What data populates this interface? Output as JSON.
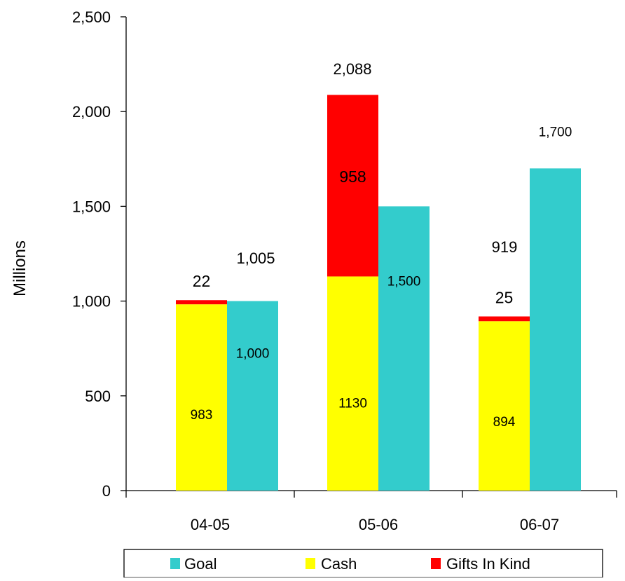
{
  "chart_data": {
    "type": "bar",
    "title": "",
    "xlabel": "",
    "ylabel": "Millions",
    "ylim": [
      0,
      2500
    ],
    "yticks": [
      0,
      500,
      1000,
      1500,
      2000,
      2500
    ],
    "ytick_labels": [
      "0",
      "500",
      "1,000",
      "1,500",
      "2,000",
      "2,500"
    ],
    "categories": [
      "04-05",
      "05-06",
      "06-07"
    ],
    "stacked_series": [
      {
        "name": "Cash",
        "color": "#ffff00",
        "values": [
          983,
          1130,
          894
        ],
        "labels": [
          "983",
          "1130",
          "894"
        ]
      },
      {
        "name": "Gifts In Kind",
        "color": "#ff0000",
        "values": [
          22,
          958,
          25
        ],
        "labels": [
          "22",
          "958",
          "25"
        ]
      }
    ],
    "stack_totals": [
      "1,005",
      "2,088",
      "919"
    ],
    "goal_series": {
      "name": "Goal",
      "color": "#33cccc",
      "values": [
        1000,
        1500,
        1700
      ],
      "labels": [
        "1,000",
        "1,500",
        "1,700"
      ]
    },
    "legend": {
      "position": "bottom",
      "entries": [
        {
          "name": "Goal",
          "color": "#33cccc"
        },
        {
          "name": "Cash",
          "color": "#ffff00"
        },
        {
          "name": "Gifts In Kind",
          "color": "#ff0000"
        }
      ]
    },
    "grid": false
  }
}
